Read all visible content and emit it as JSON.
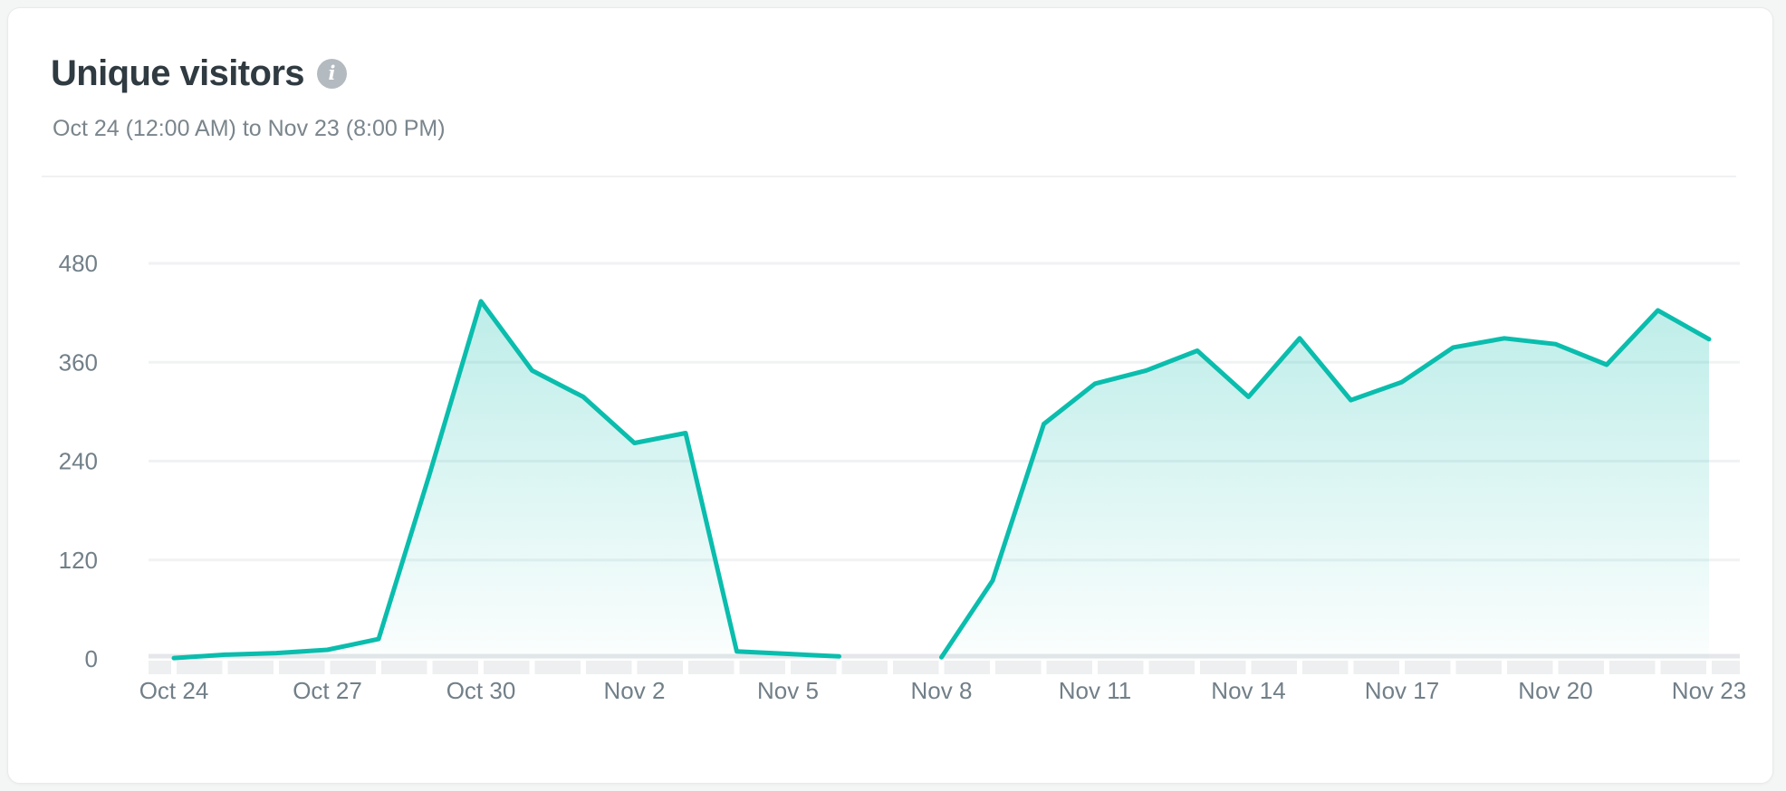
{
  "card": {
    "title": "Unique visitors",
    "subtitle": "Oct 24 (12:00 AM) to Nov 23 (8:00 PM)",
    "info_glyph": "i"
  },
  "colors": {
    "line": "#0abdad",
    "fill_top": "rgba(10,188,172,0.32)",
    "fill_bottom": "rgba(10,188,172,0.015)",
    "gridline": "#f0f2f4",
    "axis_line": "#e5e7ea",
    "axis_band": "#edeff0",
    "tick_gap": "#ffffff",
    "tick_label": "#717f88",
    "title_text": "#2f3a41",
    "subtitle_text": "#7a858c"
  },
  "chart_data": {
    "type": "area",
    "title": "Unique visitors",
    "subtitle_range": "Oct 24 (12:00 AM) to Nov 23 (8:00 PM)",
    "x": [
      "Oct 24",
      "Oct 25",
      "Oct 26",
      "Oct 27",
      "Oct 28",
      "Oct 29",
      "Oct 30",
      "Oct 31",
      "Nov 1",
      "Nov 2",
      "Nov 3",
      "Nov 4",
      "Nov 5",
      "Nov 6",
      "Nov 7",
      "Nov 8",
      "Nov 9",
      "Nov 10",
      "Nov 11",
      "Nov 12",
      "Nov 13",
      "Nov 14",
      "Nov 15",
      "Nov 16",
      "Nov 17",
      "Nov 18",
      "Nov 19",
      "Nov 20",
      "Nov 21",
      "Nov 22",
      "Nov 23"
    ],
    "series": [
      {
        "name": "Unique visitors",
        "values": [
          1,
          5,
          7,
          11,
          24,
          225,
          434,
          350,
          318,
          262,
          274,
          9,
          6,
          3,
          null,
          2,
          95,
          285,
          334,
          350,
          374,
          318,
          389,
          314,
          336,
          378,
          389,
          382,
          357,
          423,
          388
        ]
      }
    ],
    "null_means": "gap-in-line",
    "x_tick_labels": [
      "Oct 24",
      "Oct 27",
      "Oct 30",
      "Nov 2",
      "Nov 5",
      "Nov 8",
      "Nov 11",
      "Nov 14",
      "Nov 17",
      "Nov 20",
      "Nov 23"
    ],
    "x_tick_label_every": 3,
    "y_ticks": [
      0,
      120,
      240,
      360,
      480
    ],
    "ylim": [
      0,
      480
    ],
    "xlabel": "",
    "ylabel": "",
    "grid": "horizontal",
    "legend": false
  }
}
